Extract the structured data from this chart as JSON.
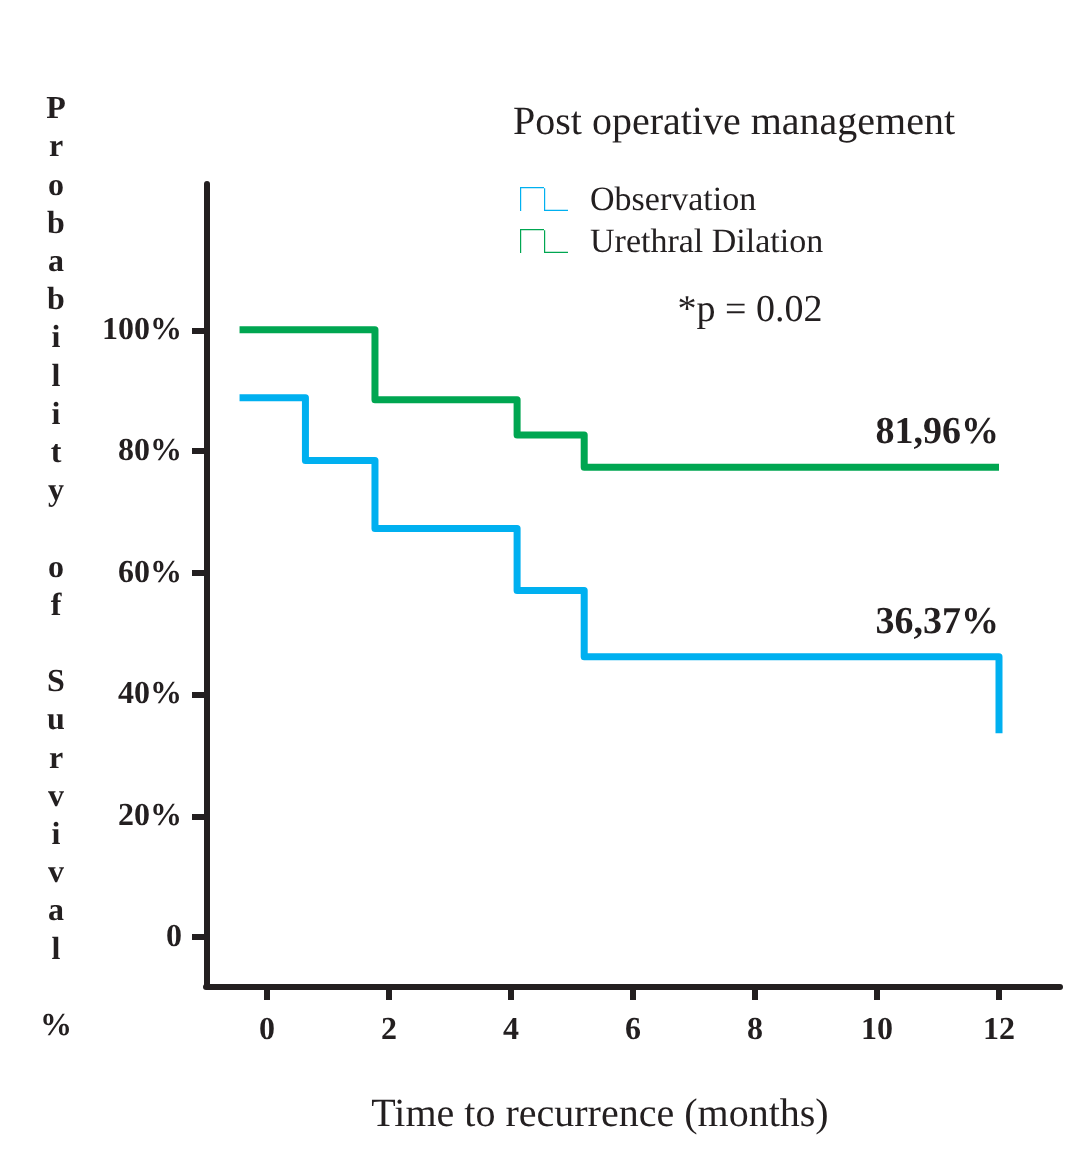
{
  "chart_data": {
    "type": "step",
    "legend_title": "Post operative management",
    "xlabel": "Time to recurrence (months)",
    "ylabel": "Probability of Survival %",
    "xlim": [
      -1,
      13
    ],
    "xticks": [
      0,
      2,
      4,
      6,
      8,
      10,
      12
    ],
    "ylim": [
      -8,
      124
    ],
    "yticks": [
      {
        "value": 0,
        "label": "0"
      },
      {
        "value": 20,
        "label": "20%"
      },
      {
        "value": 40,
        "label": "40%"
      },
      {
        "value": 60,
        "label": "60%"
      },
      {
        "value": 80,
        "label": "80%"
      },
      {
        "value": 100,
        "label": "100%"
      }
    ],
    "series": [
      {
        "name": "Observation",
        "color": "#00b0f0",
        "x": [
          -0.45,
          0.63,
          1.77,
          4.1,
          5.2,
          12,
          12
        ],
        "values": [
          88.8,
          78.5,
          67.3,
          57.1,
          46.2,
          46.2,
          33.6
        ]
      },
      {
        "name": "Urethral Dilation",
        "color": "#00a651",
        "x": [
          -0.45,
          1.77,
          4.1,
          5.2,
          12
        ],
        "values": [
          100,
          88.5,
          82.7,
          77.4,
          77.4
        ]
      }
    ],
    "annotations": [
      "*p = 0.02",
      {
        "text": "81,96%",
        "x": 12,
        "y": 77.4
      },
      {
        "text": "36,37%",
        "x": 12,
        "y": 46.2
      }
    ],
    "legend": "top right",
    "marker": "none",
    "line_style": "solid",
    "grid": false
  }
}
